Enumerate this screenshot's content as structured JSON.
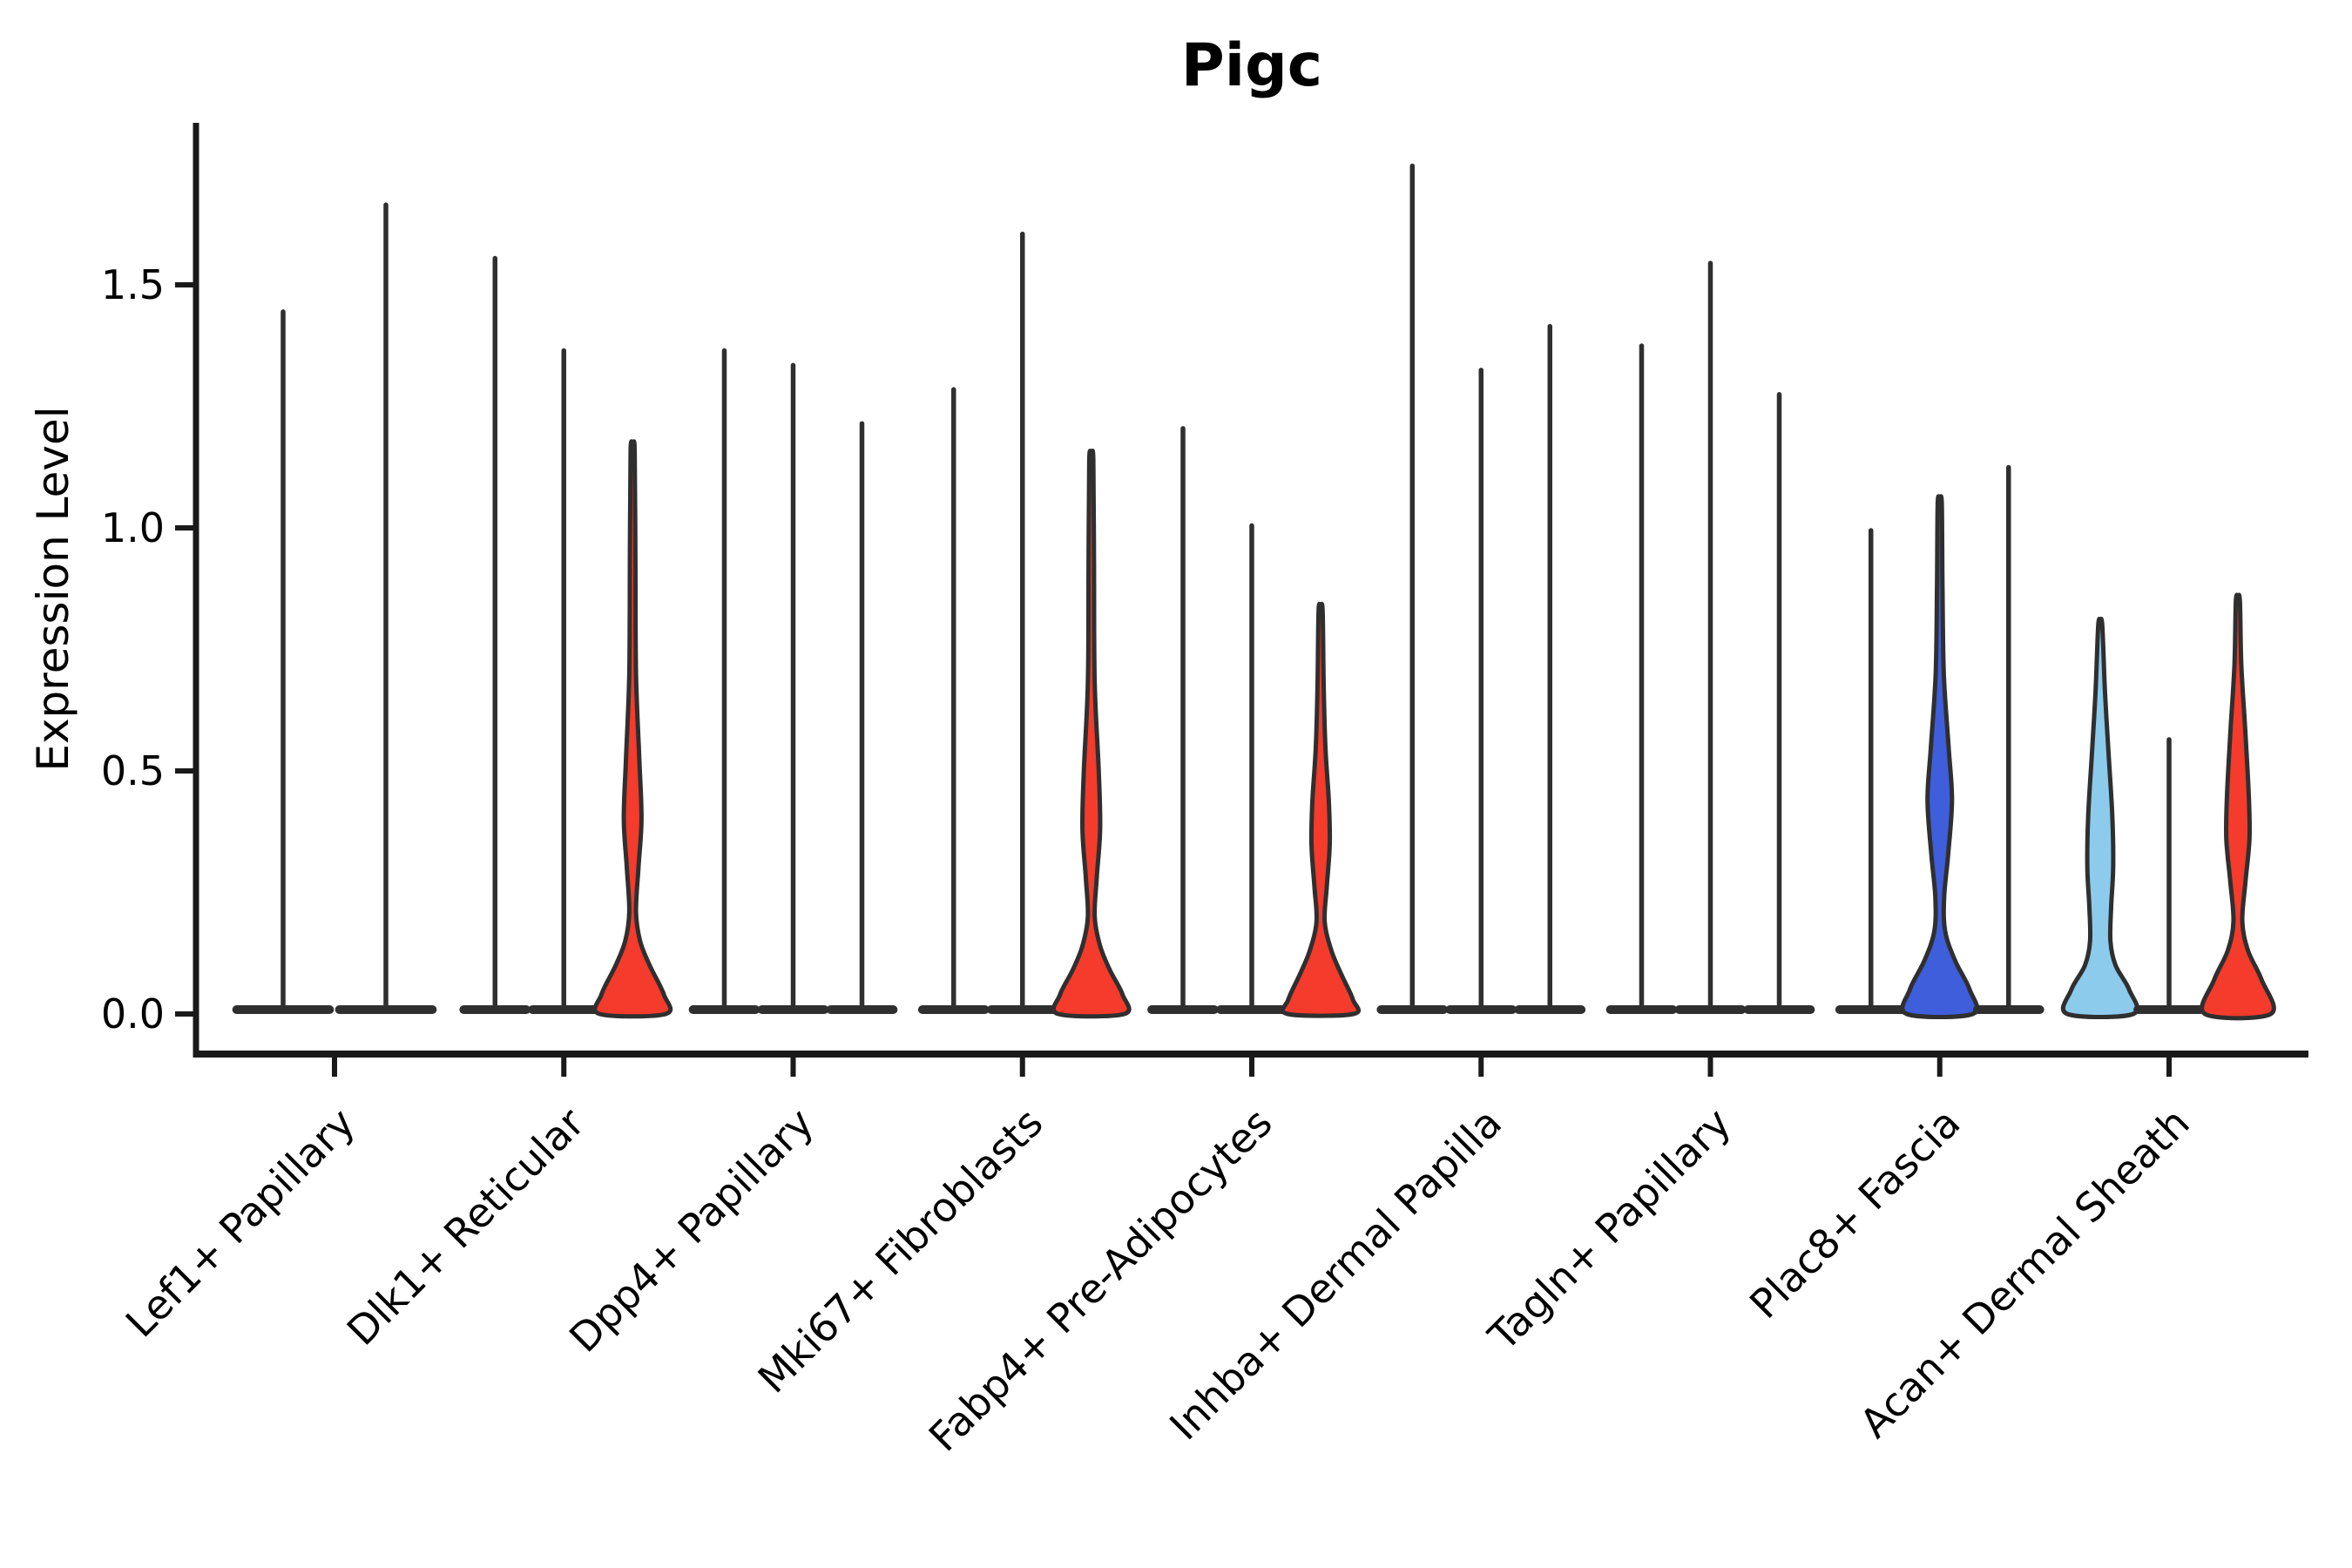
{
  "chart_data": {
    "type": "violin",
    "title": "Pigc",
    "xlabel": "",
    "ylabel": "Expression Level",
    "yticks": [
      0.0,
      0.5,
      1.0,
      1.5
    ],
    "ylim": [
      -0.08,
      1.83
    ],
    "grid": false,
    "legend_position": "none",
    "colors": {
      "red": "#f43b2c",
      "blue": "#3e5edc",
      "lightblue": "#8ccbec",
      "edge": "#2f2f2f",
      "axis": "#1a1a1a"
    },
    "categories": [
      "Lef1+ Papillary",
      "Dlk1+ Reticular",
      "Dpp4+ Papillary",
      "Mki67+ Fibroblasts",
      "Fabp4+ Pre-Adipocytes",
      "Inhba+ Dermal Papilla",
      "Tagln+ Papillary",
      "Plac8+ Fascia",
      "Acan+ Dermal Sheath"
    ],
    "groups": [
      {
        "category": "Lef1+ Papillary",
        "violins": [
          {
            "max": 1.45,
            "fill": "none"
          },
          {
            "max": 1.67,
            "fill": "none"
          }
        ]
      },
      {
        "category": "Dlk1+ Reticular",
        "violins": [
          {
            "max": 1.56,
            "fill": "none"
          },
          {
            "max": 1.37,
            "fill": "none"
          },
          {
            "max": 1.16,
            "fill": "red",
            "profile": [
              [
                1.16,
                0.06
              ],
              [
                0.95,
                0.08
              ],
              [
                0.7,
                0.1
              ],
              [
                0.52,
                0.2
              ],
              [
                0.4,
                0.26
              ],
              [
                0.3,
                0.17
              ],
              [
                0.21,
                0.1
              ],
              [
                0.15,
                0.22
              ],
              [
                0.1,
                0.5
              ],
              [
                0.04,
                0.92
              ],
              [
                0.0,
                0.97
              ]
            ]
          }
        ]
      },
      {
        "category": "Dpp4+ Papillary",
        "violins": [
          {
            "max": 1.37,
            "fill": "none"
          },
          {
            "max": 1.34,
            "fill": "none"
          },
          {
            "max": 1.22,
            "fill": "none"
          }
        ]
      },
      {
        "category": "Mki67+ Fibroblasts",
        "violins": [
          {
            "max": 1.29,
            "fill": "none"
          },
          {
            "max": 1.61,
            "fill": "none"
          },
          {
            "max": 1.14,
            "fill": "red",
            "profile": [
              [
                1.14,
                0.06
              ],
              [
                0.92,
                0.08
              ],
              [
                0.68,
                0.1
              ],
              [
                0.5,
                0.22
              ],
              [
                0.38,
                0.26
              ],
              [
                0.28,
                0.16
              ],
              [
                0.2,
                0.1
              ],
              [
                0.14,
                0.26
              ],
              [
                0.09,
                0.55
              ],
              [
                0.04,
                0.92
              ],
              [
                0.0,
                0.97
              ]
            ]
          }
        ]
      },
      {
        "category": "Fabp4+ Pre-Adipocytes",
        "violins": [
          {
            "max": 1.21,
            "fill": "none"
          },
          {
            "max": 1.01,
            "fill": "none"
          },
          {
            "max": 0.83,
            "fill": "red",
            "profile": [
              [
                0.83,
                0.06
              ],
              [
                0.68,
                0.09
              ],
              [
                0.55,
                0.14
              ],
              [
                0.44,
                0.24
              ],
              [
                0.35,
                0.27
              ],
              [
                0.26,
                0.18
              ],
              [
                0.19,
                0.12
              ],
              [
                0.13,
                0.32
              ],
              [
                0.08,
                0.62
              ],
              [
                0.03,
                0.95
              ],
              [
                0.0,
                0.97
              ]
            ]
          }
        ]
      },
      {
        "category": "Inhba+ Dermal Papilla",
        "violins": [
          {
            "max": 1.75,
            "fill": "none"
          },
          {
            "max": 1.33,
            "fill": "none"
          },
          {
            "max": 1.42,
            "fill": "none"
          }
        ]
      },
      {
        "category": "Tagln+ Papillary",
        "violins": [
          {
            "max": 1.38,
            "fill": "none"
          },
          {
            "max": 1.55,
            "fill": "none"
          },
          {
            "max": 1.28,
            "fill": "none"
          }
        ]
      },
      {
        "category": "Plac8+ Fascia",
        "violins": [
          {
            "max": 1.0,
            "fill": "none"
          },
          {
            "max": 1.05,
            "fill": "blue",
            "profile": [
              [
                1.05,
                0.06
              ],
              [
                0.88,
                0.08
              ],
              [
                0.7,
                0.12
              ],
              [
                0.55,
                0.26
              ],
              [
                0.44,
                0.36
              ],
              [
                0.33,
                0.25
              ],
              [
                0.24,
                0.13
              ],
              [
                0.17,
                0.16
              ],
              [
                0.11,
                0.45
              ],
              [
                0.05,
                0.88
              ],
              [
                0.0,
                0.97
              ]
            ]
          },
          {
            "max": 1.13,
            "fill": "none"
          }
        ]
      },
      {
        "category": "Acan+ Dermal Sheath",
        "violins": [
          {
            "max": 0.8,
            "fill": "lightblue",
            "profile": [
              [
                0.8,
                0.06
              ],
              [
                0.66,
                0.14
              ],
              [
                0.52,
                0.26
              ],
              [
                0.4,
                0.36
              ],
              [
                0.3,
                0.38
              ],
              [
                0.22,
                0.32
              ],
              [
                0.15,
                0.3
              ],
              [
                0.1,
                0.45
              ],
              [
                0.05,
                0.85
              ],
              [
                0.0,
                0.97
              ]
            ]
          },
          {
            "max": 0.57,
            "fill": "none"
          },
          {
            "max": 0.85,
            "fill": "red",
            "profile": [
              [
                0.85,
                0.06
              ],
              [
                0.72,
                0.1
              ],
              [
                0.58,
                0.22
              ],
              [
                0.45,
                0.32
              ],
              [
                0.36,
                0.34
              ],
              [
                0.27,
                0.22
              ],
              [
                0.19,
                0.13
              ],
              [
                0.13,
                0.3
              ],
              [
                0.07,
                0.7
              ],
              [
                0.0,
                0.97
              ]
            ]
          }
        ]
      }
    ]
  }
}
